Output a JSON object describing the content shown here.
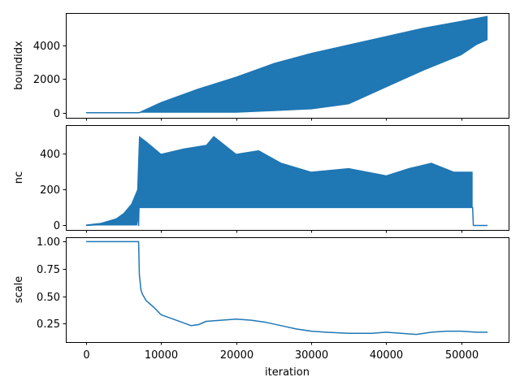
{
  "chart_data": {
    "type": "line",
    "color": "#1f77b4",
    "xlabel": "iteration",
    "xlim": [
      -2700,
      56300
    ],
    "xticks": [
      0,
      10000,
      20000,
      30000,
      40000,
      50000
    ],
    "xtick_labels": [
      "0",
      "10000",
      "20000",
      "30000",
      "40000",
      "50000"
    ],
    "panels": [
      {
        "id": "boundidx",
        "ylabel": "boundidx",
        "ylim": [
          -300,
          5900
        ],
        "yticks": [
          0,
          2000,
          4000
        ],
        "ytick_labels": [
          "0",
          "2000",
          "4000"
        ],
        "show_xtick_labels": false,
        "series": [
          {
            "kind": "band",
            "x": [
              0,
              7000,
              10000,
              15000,
              20000,
              25000,
              30000,
              35000,
              40000,
              45000,
              50000,
              52000,
              53500
            ],
            "upper": [
              0,
              0,
              600,
              1400,
              2100,
              2900,
              3500,
              4000,
              4500,
              5000,
              5400,
              5600,
              5700
            ],
            "lower": [
              0,
              0,
              0,
              0,
              0,
              100,
              200,
              500,
              1500,
              2500,
              3400,
              4000,
              4300
            ]
          },
          {
            "kind": "line",
            "x": [
              0,
              7000,
              7050,
              10000,
              15000,
              20000,
              25000,
              30000,
              35000,
              40000,
              45000,
              50000,
              53500
            ],
            "y": [
              0,
              0,
              0,
              600,
              1400,
              2100,
              2900,
              3500,
              4000,
              4500,
              5000,
              5400,
              5700
            ]
          }
        ]
      },
      {
        "id": "nc",
        "ylabel": "nc",
        "ylim": [
          -25,
          560
        ],
        "yticks": [
          0,
          200,
          400
        ],
        "ytick_labels": [
          "0",
          "200",
          "400"
        ],
        "show_xtick_labels": false,
        "series": [
          {
            "kind": "band",
            "x": [
              0,
              2000,
              4000,
              5000,
              6000,
              6800,
              7050,
              8000,
              10000,
              13000,
              16000,
              17000,
              20000,
              23000,
              26000,
              30000,
              35000,
              40000,
              43000,
              46000,
              49000,
              51500
            ],
            "upper": [
              5,
              15,
              40,
              70,
              120,
              200,
              500,
              470,
              400,
              430,
              450,
              500,
              400,
              420,
              350,
              300,
              320,
              280,
              320,
              350,
              300,
              300
            ],
            "lower": [
              0,
              0,
              0,
              0,
              0,
              0,
              100,
              100,
              100,
              100,
              100,
              100,
              100,
              100,
              100,
              100,
              100,
              100,
              100,
              100,
              100,
              100
            ]
          },
          {
            "kind": "line",
            "x": [
              0,
              2000,
              4000,
              5000,
              6000,
              6800,
              7000,
              7050,
              51500,
              51600,
              53500
            ],
            "y": [
              0,
              5,
              20,
              30,
              60,
              100,
              0,
              100,
              100,
              0,
              0
            ]
          }
        ]
      },
      {
        "id": "scale",
        "ylabel": "scale",
        "ylim": [
          0.08,
          1.04
        ],
        "yticks": [
          0.25,
          0.5,
          0.75,
          1.0
        ],
        "ytick_labels": [
          "0.25",
          "0.50",
          "0.75",
          "1.00"
        ],
        "show_xtick_labels": true,
        "series": [
          {
            "kind": "line",
            "x": [
              0,
              7000,
              7100,
              7300,
              7500,
              8000,
              9000,
              10000,
              12000,
              14000,
              15000,
              16000,
              18000,
              20000,
              22000,
              24000,
              26000,
              28000,
              30000,
              32000,
              35000,
              38000,
              40000,
              42000,
              44000,
              46000,
              48000,
              50000,
              52000,
              53500
            ],
            "y": [
              1.0,
              1.0,
              0.7,
              0.56,
              0.52,
              0.46,
              0.4,
              0.33,
              0.28,
              0.23,
              0.24,
              0.27,
              0.28,
              0.29,
              0.28,
              0.26,
              0.23,
              0.2,
              0.18,
              0.17,
              0.16,
              0.16,
              0.17,
              0.16,
              0.15,
              0.17,
              0.18,
              0.18,
              0.17,
              0.17
            ]
          }
        ]
      }
    ]
  }
}
